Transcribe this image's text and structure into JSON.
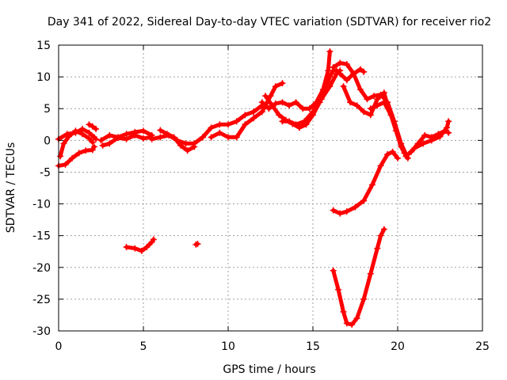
{
  "chart_data": {
    "type": "scatter",
    "title": "Day 341 of 2022, Sidereal Day-to-day VTEC variation (SDTVAR) for receiver rio2",
    "xlabel": "GPS time / hours",
    "ylabel": "SDTVAR / TECUs",
    "xlim": [
      0,
      25
    ],
    "ylim": [
      -30,
      15
    ],
    "x_ticks": [
      0,
      5,
      10,
      15,
      20,
      25
    ],
    "y_ticks": [
      -30,
      -25,
      -20,
      -15,
      -10,
      -5,
      0,
      5,
      10,
      15
    ],
    "x_tick_labels": [
      "0",
      "5",
      "10",
      "15",
      "20",
      "25"
    ],
    "y_tick_labels": [
      "-30",
      "-25",
      "-20",
      "-15",
      "-10",
      "-5",
      "0",
      "5",
      "10",
      "15"
    ],
    "grid": true,
    "marker_color": "#ff0000",
    "series": [
      {
        "name": "track-a",
        "points": [
          [
            0,
            0.2
          ],
          [
            0.5,
            1.0
          ],
          [
            1,
            1.2
          ],
          [
            1.4,
            1.8
          ],
          [
            1.8,
            1.2
          ],
          [
            2.1,
            0.5
          ],
          [
            2.2,
            0.2
          ]
        ]
      },
      {
        "name": "track-b",
        "points": [
          [
            0,
            -4.0
          ],
          [
            0.4,
            -3.8
          ],
          [
            0.8,
            -2.8
          ],
          [
            1.2,
            -2.0
          ],
          [
            1.6,
            -1.6
          ],
          [
            2.0,
            -1.5
          ],
          [
            2.1,
            -1.0
          ]
        ]
      },
      {
        "name": "track-c",
        "points": [
          [
            0.1,
            -2.5
          ],
          [
            0.3,
            -0.5
          ],
          [
            0.6,
            0.6
          ],
          [
            1.0,
            1.5
          ],
          [
            1.4,
            1.0
          ],
          [
            1.8,
            0.3
          ],
          [
            2.0,
            -0.3
          ]
        ]
      },
      {
        "name": "track-d",
        "points": [
          [
            1.8,
            2.5
          ],
          [
            2.0,
            2.2
          ],
          [
            2.2,
            1.8
          ]
        ]
      },
      {
        "name": "track-e",
        "points": [
          [
            2.5,
            0.0
          ],
          [
            3,
            0.8
          ],
          [
            3.5,
            0.5
          ],
          [
            4,
            1.0
          ],
          [
            4.5,
            1.3
          ],
          [
            5,
            1.5
          ],
          [
            5.5,
            0.8
          ]
        ]
      },
      {
        "name": "track-f",
        "points": [
          [
            2.6,
            -0.8
          ],
          [
            3,
            -0.5
          ],
          [
            3.5,
            0.4
          ],
          [
            4,
            0.2
          ],
          [
            4.5,
            0.8
          ],
          [
            5,
            0.3
          ],
          [
            5.4,
            0.5
          ]
        ]
      },
      {
        "name": "track-g",
        "points": [
          [
            4,
            -16.8
          ],
          [
            4.5,
            -17.0
          ],
          [
            4.9,
            -17.4
          ],
          [
            5.2,
            -16.8
          ],
          [
            5.5,
            -16.0
          ],
          [
            5.6,
            -15.6
          ]
        ]
      },
      {
        "name": "track-h",
        "points": [
          [
            5.5,
            0.2
          ],
          [
            6,
            0.5
          ],
          [
            6.5,
            0.8
          ],
          [
            7,
            0.0
          ],
          [
            7.5,
            -0.5
          ],
          [
            8,
            -0.5
          ],
          [
            8.5,
            0.5
          ]
        ]
      },
      {
        "name": "track-i",
        "points": [
          [
            6.0,
            1.6
          ],
          [
            6.4,
            1.0
          ],
          [
            6.8,
            0.5
          ],
          [
            7.2,
            -0.8
          ],
          [
            7.6,
            -1.6
          ],
          [
            8.0,
            -1.0
          ]
        ]
      },
      {
        "name": "track-j",
        "points": [
          [
            8.1,
            -16.4
          ],
          [
            8.2,
            -16.3
          ]
        ]
      },
      {
        "name": "track-k",
        "points": [
          [
            8.5,
            0.5
          ],
          [
            9,
            2.0
          ],
          [
            9.5,
            2.5
          ],
          [
            10,
            2.5
          ],
          [
            10.5,
            3.0
          ],
          [
            11,
            4.0
          ],
          [
            11.5,
            4.5
          ],
          [
            12,
            5.5
          ]
        ]
      },
      {
        "name": "track-l",
        "points": [
          [
            9,
            0.5
          ],
          [
            9.5,
            1.2
          ],
          [
            10,
            0.5
          ],
          [
            10.5,
            0.5
          ],
          [
            11,
            2.5
          ],
          [
            11.5,
            3.5
          ],
          [
            12,
            4.5
          ],
          [
            12.5,
            7.0
          ],
          [
            12.8,
            8.5
          ],
          [
            13.2,
            9.0
          ]
        ]
      },
      {
        "name": "track-m",
        "points": [
          [
            12.2,
            7.0
          ],
          [
            12.6,
            5.5
          ],
          [
            13.0,
            4.0
          ],
          [
            13.4,
            3.2
          ],
          [
            13.8,
            2.6
          ],
          [
            14.2,
            2.0
          ],
          [
            14.6,
            2.5
          ],
          [
            15.0,
            4.0
          ],
          [
            15.4,
            6.0
          ],
          [
            15.7,
            8.0
          ],
          [
            16.0,
            10.0
          ],
          [
            16.2,
            11.0
          ],
          [
            16.4,
            11.0
          ]
        ]
      },
      {
        "name": "track-n",
        "points": [
          [
            12.0,
            6.0
          ],
          [
            12.4,
            5.0
          ],
          [
            12.8,
            5.8
          ],
          [
            13.2,
            6.0
          ],
          [
            13.6,
            5.5
          ],
          [
            14.0,
            6.0
          ],
          [
            14.4,
            5.0
          ],
          [
            14.8,
            5.0
          ],
          [
            15.2,
            6.0
          ],
          [
            15.6,
            8.0
          ],
          [
            15.9,
            11.0
          ],
          [
            16.0,
            14.0
          ]
        ]
      },
      {
        "name": "track-o",
        "points": [
          [
            13.2,
            3.0
          ],
          [
            13.6,
            3.0
          ],
          [
            14.0,
            2.5
          ],
          [
            14.5,
            3.0
          ],
          [
            15.0,
            4.5
          ],
          [
            15.5,
            6.5
          ],
          [
            16.0,
            8.5
          ],
          [
            16.4,
            10.5
          ],
          [
            16.6,
            11.0
          ]
        ]
      },
      {
        "name": "track-p",
        "points": [
          [
            16.2,
            11.5
          ],
          [
            16.6,
            12.2
          ],
          [
            17.0,
            12.0
          ],
          [
            17.4,
            10.5
          ],
          [
            17.8,
            8.0
          ],
          [
            18.2,
            6.5
          ],
          [
            18.6,
            7.0
          ],
          [
            19.0,
            7.2
          ],
          [
            19.4,
            6.0
          ],
          [
            19.8,
            3.0
          ],
          [
            20.2,
            -0.5
          ],
          [
            20.6,
            -2.8
          ]
        ]
      },
      {
        "name": "track-q",
        "points": [
          [
            16.6,
            10.5
          ],
          [
            17.0,
            9.5
          ],
          [
            17.4,
            10.5
          ],
          [
            17.8,
            11.2
          ],
          [
            18.0,
            10.8
          ]
        ]
      },
      {
        "name": "track-r",
        "points": [
          [
            16.8,
            8.5
          ],
          [
            17.2,
            6.0
          ],
          [
            17.6,
            5.5
          ],
          [
            18.0,
            4.5
          ],
          [
            18.4,
            4.0
          ],
          [
            18.8,
            6.5
          ],
          [
            19.2,
            7.5
          ],
          [
            19.4,
            5.5
          ]
        ]
      },
      {
        "name": "track-s",
        "points": [
          [
            18.4,
            5.0
          ],
          [
            18.8,
            5.5
          ],
          [
            19.2,
            6.0
          ],
          [
            19.6,
            4.0
          ],
          [
            19.9,
            1.5
          ],
          [
            20.2,
            -1.0
          ],
          [
            20.4,
            -2.0
          ],
          [
            20.5,
            -2.5
          ]
        ]
      },
      {
        "name": "track-t",
        "points": [
          [
            16.2,
            -11.0
          ],
          [
            16.6,
            -11.5
          ],
          [
            17.0,
            -11.2
          ],
          [
            17.5,
            -10.5
          ],
          [
            18.0,
            -9.5
          ],
          [
            18.5,
            -7.0
          ],
          [
            19.0,
            -4.0
          ],
          [
            19.4,
            -2.2
          ],
          [
            19.7,
            -1.8
          ],
          [
            20.0,
            -2.8
          ]
        ]
      },
      {
        "name": "track-u",
        "points": [
          [
            20.5,
            -2.5
          ],
          [
            21.0,
            -1.2
          ],
          [
            21.5,
            -0.5
          ],
          [
            22.0,
            0.0
          ],
          [
            22.5,
            0.6
          ],
          [
            22.9,
            2.0
          ],
          [
            23.0,
            3.0
          ]
        ]
      },
      {
        "name": "track-v",
        "points": [
          [
            20.8,
            -1.8
          ],
          [
            21.2,
            -0.5
          ],
          [
            21.6,
            0.8
          ],
          [
            22.0,
            0.5
          ],
          [
            22.4,
            1.0
          ],
          [
            22.8,
            1.5
          ],
          [
            23.0,
            1.2
          ]
        ]
      },
      {
        "name": "track-w",
        "points": [
          [
            16.2,
            -20.5
          ],
          [
            16.5,
            -23.5
          ],
          [
            16.8,
            -27.0
          ],
          [
            17.0,
            -28.8
          ],
          [
            17.3,
            -29.0
          ],
          [
            17.6,
            -28.0
          ],
          [
            18.0,
            -25.0
          ],
          [
            18.4,
            -21.0
          ],
          [
            18.8,
            -17.0
          ],
          [
            19.0,
            -15.0
          ],
          [
            19.2,
            -14.0
          ]
        ]
      }
    ]
  }
}
